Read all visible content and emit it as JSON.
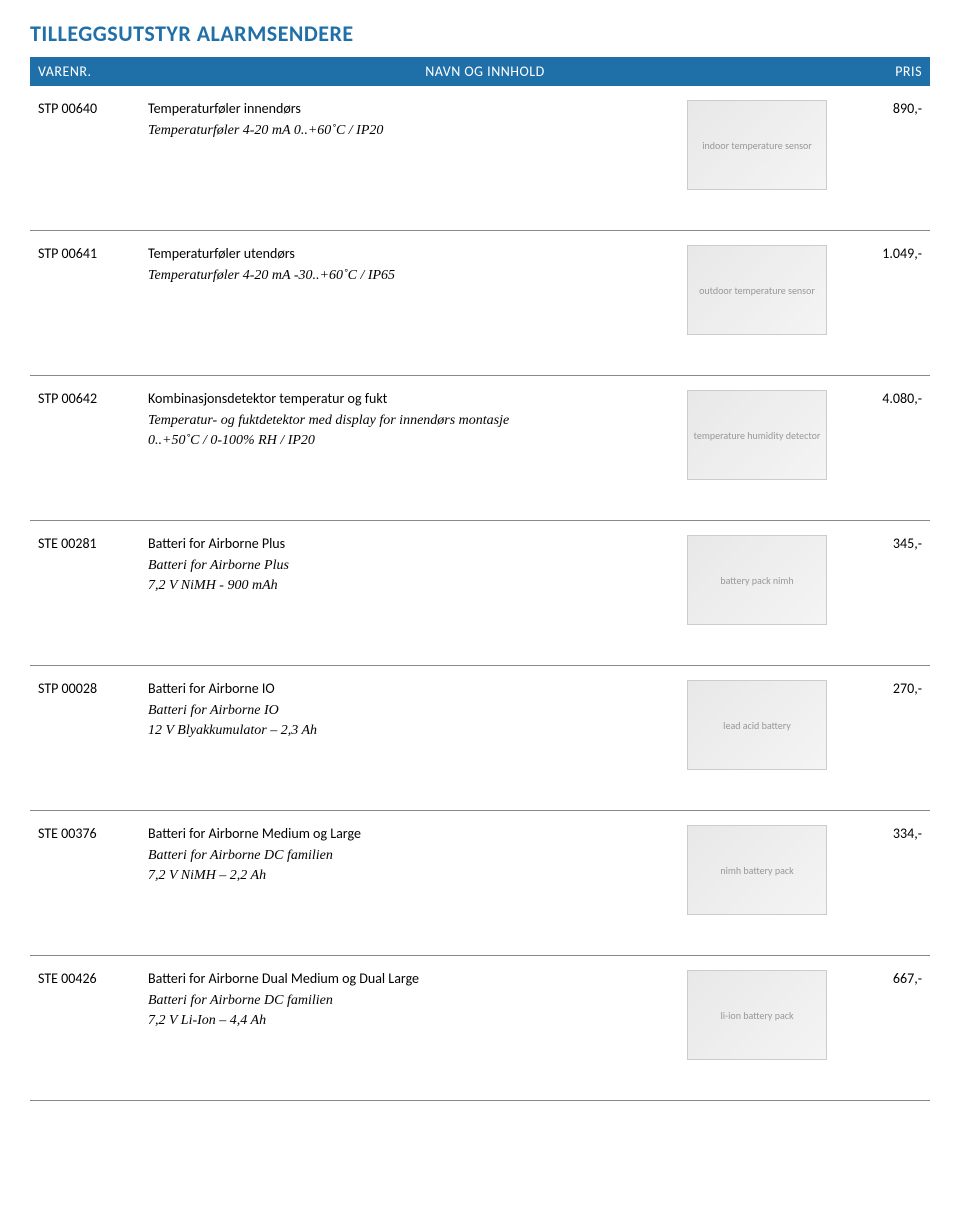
{
  "title": "TILLEGGSUTSTYR ALARMSENDERE",
  "header": {
    "sku": "VARENR.",
    "name": "NAVN OG INNHOLD",
    "price": "PRIS"
  },
  "colors": {
    "brand": "#1f6fa8",
    "text": "#000000",
    "background": "#ffffff",
    "border": "#888888"
  },
  "typography": {
    "title_fontsize": 22,
    "body_fontsize": 14,
    "desc_font": "Garamond, italic"
  },
  "products": [
    {
      "sku": "STP 00640",
      "name": "Temperaturføler innendørs",
      "desc": "Temperaturføler 4-20 mA     0..+60˚C / IP20",
      "price": "890,-",
      "image_alt": "indoor temperature sensor"
    },
    {
      "sku": "STP 00641",
      "name": "Temperaturføler utendørs",
      "desc": "Temperaturføler 4-20 mA     -30..+60˚C / IP65",
      "price": "1.049,-",
      "image_alt": "outdoor temperature sensor"
    },
    {
      "sku": "STP 00642",
      "name": "Kombinasjonsdetektor temperatur og fukt",
      "desc": "Temperatur- og fuktdetektor med display for innendørs montasje\n0..+50˚C / 0-100% RH / IP20",
      "price": "4.080,-",
      "image_alt": "temperature humidity detector"
    },
    {
      "sku": "STE 00281",
      "name": "Batteri for Airborne Plus",
      "desc": "Batteri for Airborne Plus\n7,2 V NiMH - 900 mAh",
      "price": "345,-",
      "image_alt": "battery pack nimh"
    },
    {
      "sku": "STP 00028",
      "name": "Batteri for Airborne IO",
      "desc": "Batteri for Airborne IO\n12 V Blyakkumulator – 2,3 Ah",
      "price": "270,-",
      "image_alt": "lead acid battery"
    },
    {
      "sku": "STE 00376",
      "name": "Batteri for Airborne Medium og Large",
      "desc": "Batteri for Airborne DC familien\n7,2 V NiMH – 2,2 Ah",
      "price": "334,-",
      "image_alt": "nimh battery pack"
    },
    {
      "sku": "STE 00426",
      "name": "Batteri for Airborne Dual Medium og Dual Large",
      "desc": "Batteri for Airborne DC familien\n7,2 V Li-Ion – 4,4 Ah",
      "price": "667,-",
      "image_alt": "li-ion battery pack"
    }
  ]
}
